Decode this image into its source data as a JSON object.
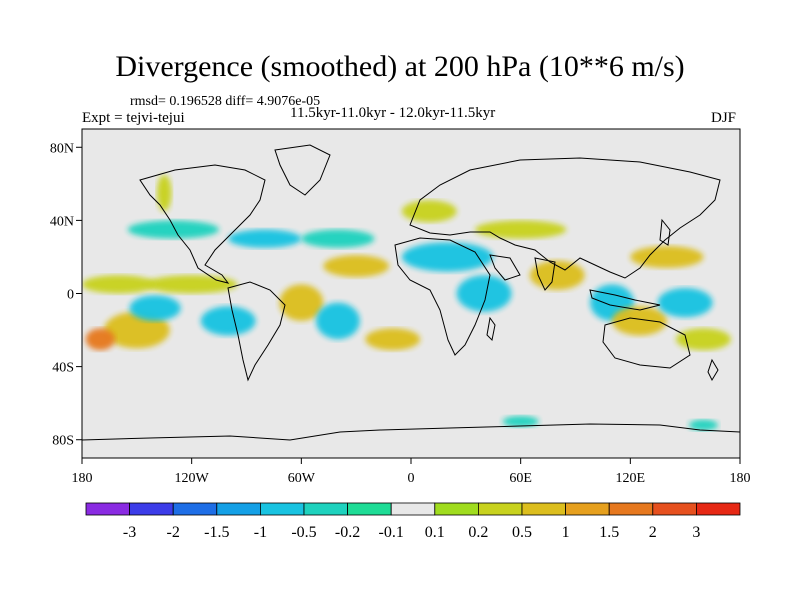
{
  "title": "Divergence (smoothed) at 200 hPa (10**6 m/s)",
  "stats": "rmsd= 0.196528 diff= 4.9076e-05",
  "experiment": "Expt = tejvi-tejui",
  "period": "11.5kyr-11.0kyr - 12.0kyr-11.5kyr",
  "season": "DJF",
  "axes": {
    "x_ticks": [
      {
        "lon": -180,
        "label": "180"
      },
      {
        "lon": -120,
        "label": "120W"
      },
      {
        "lon": -60,
        "label": "60W"
      },
      {
        "lon": 0,
        "label": "0"
      },
      {
        "lon": 60,
        "label": "60E"
      },
      {
        "lon": 120,
        "label": "120E"
      },
      {
        "lon": 180,
        "label": "180"
      }
    ],
    "y_ticks": [
      {
        "lat": 80,
        "label": "80N"
      },
      {
        "lat": 40,
        "label": "40N"
      },
      {
        "lat": 0,
        "label": "0"
      },
      {
        "lat": -40,
        "label": "40S"
      },
      {
        "lat": -80,
        "label": "80S"
      }
    ],
    "lon_range": [
      -180,
      180
    ],
    "lat_range": [
      -90,
      90
    ]
  },
  "colorbar": {
    "colors": [
      "#8a2be2",
      "#3c3ce8",
      "#1e6ee6",
      "#14a0e6",
      "#19c3e1",
      "#1ed2be",
      "#1edc96",
      "#e8e8e8",
      "#a0dc1e",
      "#c8d21e",
      "#dcbe1e",
      "#e6a01e",
      "#e6781e",
      "#e6501e",
      "#e62814"
    ],
    "labels": [
      "-3",
      "-2",
      "-1.5",
      "-1",
      "-0.5",
      "-0.2",
      "-0.1",
      "0.1",
      "0.2",
      "0.5",
      "1",
      "1.5",
      "2",
      "3"
    ]
  },
  "fields": [
    {
      "lon": -150,
      "lat": -20,
      "color": "#dcbe1e",
      "rx": 18,
      "ry": 10
    },
    {
      "lon": -170,
      "lat": -25,
      "color": "#e6781e",
      "rx": 8,
      "ry": 6
    },
    {
      "lon": -140,
      "lat": -8,
      "color": "#19c3e1",
      "rx": 14,
      "ry": 7
    },
    {
      "lon": -120,
      "lat": 5,
      "color": "#c8d21e",
      "rx": 25,
      "ry": 5
    },
    {
      "lon": -160,
      "lat": 5,
      "color": "#c8d21e",
      "rx": 20,
      "ry": 5
    },
    {
      "lon": -100,
      "lat": -15,
      "color": "#19c3e1",
      "rx": 15,
      "ry": 8
    },
    {
      "lon": -80,
      "lat": 30,
      "color": "#19c3e1",
      "rx": 20,
      "ry": 5
    },
    {
      "lon": -130,
      "lat": 35,
      "color": "#1ed2be",
      "rx": 25,
      "ry": 5
    },
    {
      "lon": -135,
      "lat": 55,
      "color": "#c8d21e",
      "rx": 4,
      "ry": 10
    },
    {
      "lon": -60,
      "lat": -5,
      "color": "#dcbe1e",
      "rx": 12,
      "ry": 10
    },
    {
      "lon": -40,
      "lat": -15,
      "color": "#19c3e1",
      "rx": 12,
      "ry": 10
    },
    {
      "lon": -30,
      "lat": 15,
      "color": "#dcbe1e",
      "rx": 18,
      "ry": 6
    },
    {
      "lon": -40,
      "lat": 30,
      "color": "#1ed2be",
      "rx": 20,
      "ry": 5
    },
    {
      "lon": 20,
      "lat": 20,
      "color": "#19c3e1",
      "rx": 25,
      "ry": 8
    },
    {
      "lon": 40,
      "lat": 0,
      "color": "#19c3e1",
      "rx": 15,
      "ry": 10
    },
    {
      "lon": 60,
      "lat": 35,
      "color": "#c8d21e",
      "rx": 25,
      "ry": 5
    },
    {
      "lon": 80,
      "lat": 10,
      "color": "#dcbe1e",
      "rx": 15,
      "ry": 8
    },
    {
      "lon": 110,
      "lat": -5,
      "color": "#19c3e1",
      "rx": 12,
      "ry": 10
    },
    {
      "lon": 125,
      "lat": -15,
      "color": "#dcbe1e",
      "rx": 15,
      "ry": 8
    },
    {
      "lon": 150,
      "lat": -5,
      "color": "#19c3e1",
      "rx": 15,
      "ry": 8
    },
    {
      "lon": 140,
      "lat": 20,
      "color": "#dcbe1e",
      "rx": 20,
      "ry": 6
    },
    {
      "lon": 160,
      "lat": -25,
      "color": "#c8d21e",
      "rx": 15,
      "ry": 6
    },
    {
      "lon": 60,
      "lat": -70,
      "color": "#1ed2be",
      "rx": 10,
      "ry": 3
    },
    {
      "lon": 160,
      "lat": -72,
      "color": "#1ed2be",
      "rx": 8,
      "ry": 3
    },
    {
      "lon": -10,
      "lat": -25,
      "color": "#dcbe1e",
      "rx": 15,
      "ry": 6
    },
    {
      "lon": 10,
      "lat": 45,
      "color": "#c8d21e",
      "rx": 15,
      "ry": 6
    }
  ]
}
